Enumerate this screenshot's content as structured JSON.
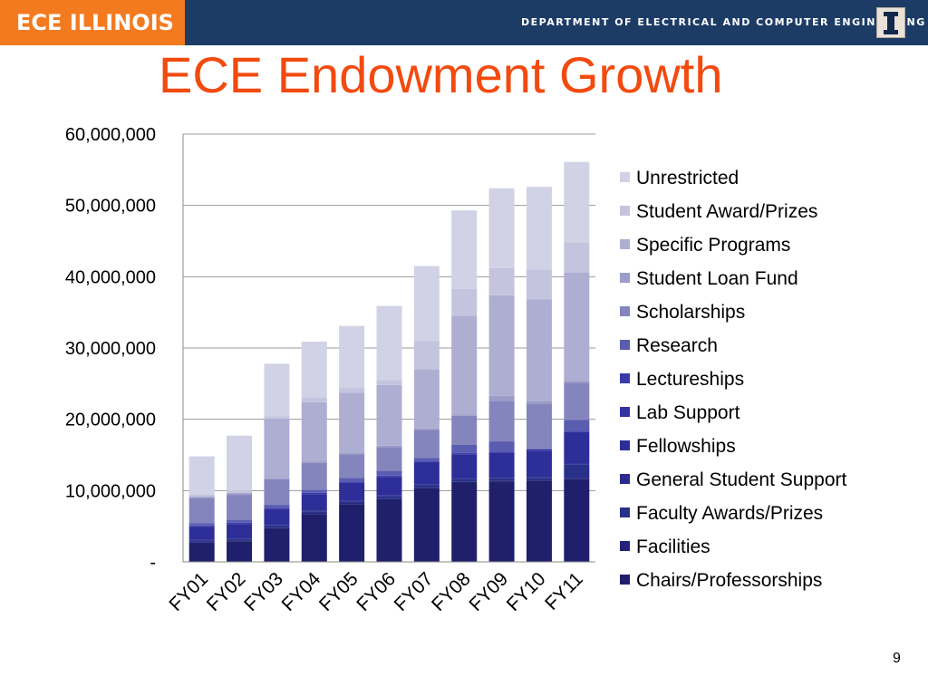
{
  "header": {
    "brand": "ECE ILLINOIS",
    "department": "DEPARTMENT OF ELECTRICAL AND COMPUTER ENGINEERING",
    "logo_letter": "I"
  },
  "slide": {
    "title": "ECE Endowment Growth",
    "page_number": "9"
  },
  "chart_data": {
    "type": "bar",
    "stacked": true,
    "title": "",
    "xlabel": "",
    "ylabel": "",
    "ylim": [
      0,
      60000000
    ],
    "yticks": [
      0,
      10000000,
      20000000,
      30000000,
      40000000,
      50000000,
      60000000
    ],
    "ytick_labels": [
      "-",
      "10,000,000",
      "20,000,000",
      "30,000,000",
      "40,000,000",
      "50,000,000",
      "60,000,000"
    ],
    "grid": true,
    "legend_position": "right",
    "categories": [
      "FY01",
      "FY02",
      "FY03",
      "FY04",
      "FY05",
      "FY06",
      "FY07",
      "FY08",
      "FY09",
      "FY10",
      "FY11"
    ],
    "series": [
      {
        "name": "Chairs/Professorships",
        "color": "#1f1f6b",
        "values": [
          2700000,
          2900000,
          4700000,
          6700000,
          8100000,
          8800000,
          10400000,
          11200000,
          11300000,
          11400000,
          11600000
        ]
      },
      {
        "name": "Facilities",
        "color": "#23237a",
        "values": [
          100000,
          100000,
          100000,
          100000,
          100000,
          100000,
          100000,
          100000,
          100000,
          100000,
          100000
        ]
      },
      {
        "name": "Faculty Awards/Prizes",
        "color": "#283089",
        "values": [
          200000,
          200000,
          300000,
          300000,
          300000,
          300000,
          300000,
          300000,
          300000,
          300000,
          2000000
        ]
      },
      {
        "name": "General Student Support",
        "color": "#2b2b8f",
        "values": [
          100000,
          100000,
          100000,
          100000,
          100000,
          100000,
          100000,
          100000,
          100000,
          100000,
          100000
        ]
      },
      {
        "name": "Fellowships",
        "color": "#2e2e98",
        "values": [
          1800000,
          2000000,
          2200000,
          2300000,
          2500000,
          2600000,
          3100000,
          3400000,
          3500000,
          3700000,
          4400000
        ]
      },
      {
        "name": "Lab Support",
        "color": "#3232a3",
        "values": [
          100000,
          100000,
          100000,
          100000,
          100000,
          100000,
          100000,
          100000,
          100000,
          100000,
          100000
        ]
      },
      {
        "name": "Lectureships",
        "color": "#3a3aab",
        "values": [
          100000,
          100000,
          100000,
          100000,
          100000,
          100000,
          100000,
          100000,
          100000,
          100000,
          100000
        ]
      },
      {
        "name": "Research",
        "color": "#5a5cb0",
        "values": [
          300000,
          400000,
          400000,
          400000,
          500000,
          700000,
          400000,
          1100000,
          1400000,
          100000,
          1500000
        ]
      },
      {
        "name": "Scholarships",
        "color": "#8585bd",
        "values": [
          3500000,
          3500000,
          3600000,
          3800000,
          3300000,
          3300000,
          3900000,
          4100000,
          5700000,
          6300000,
          5200000
        ]
      },
      {
        "name": "Student Loan Fund",
        "color": "#9c9cc8",
        "values": [
          200000,
          200000,
          200000,
          200000,
          200000,
          200000,
          200000,
          200000,
          700000,
          300000,
          300000
        ]
      },
      {
        "name": "Specific Programs",
        "color": "#aeaed2",
        "values": [
          100000,
          100000,
          8300000,
          8300000,
          8400000,
          8500000,
          8300000,
          13800000,
          14100000,
          14300000,
          15200000
        ]
      },
      {
        "name": "Student Award/Prizes",
        "color": "#c4c4de",
        "values": [
          300000,
          300000,
          300000,
          700000,
          700000,
          700000,
          4000000,
          3800000,
          3800000,
          4200000,
          4200000
        ]
      },
      {
        "name": "Unrestricted",
        "color": "#d2d2e6",
        "values": [
          5300000,
          7700000,
          7400000,
          7800000,
          8700000,
          10400000,
          10500000,
          11000000,
          11200000,
          11600000,
          11300000
        ]
      }
    ]
  }
}
